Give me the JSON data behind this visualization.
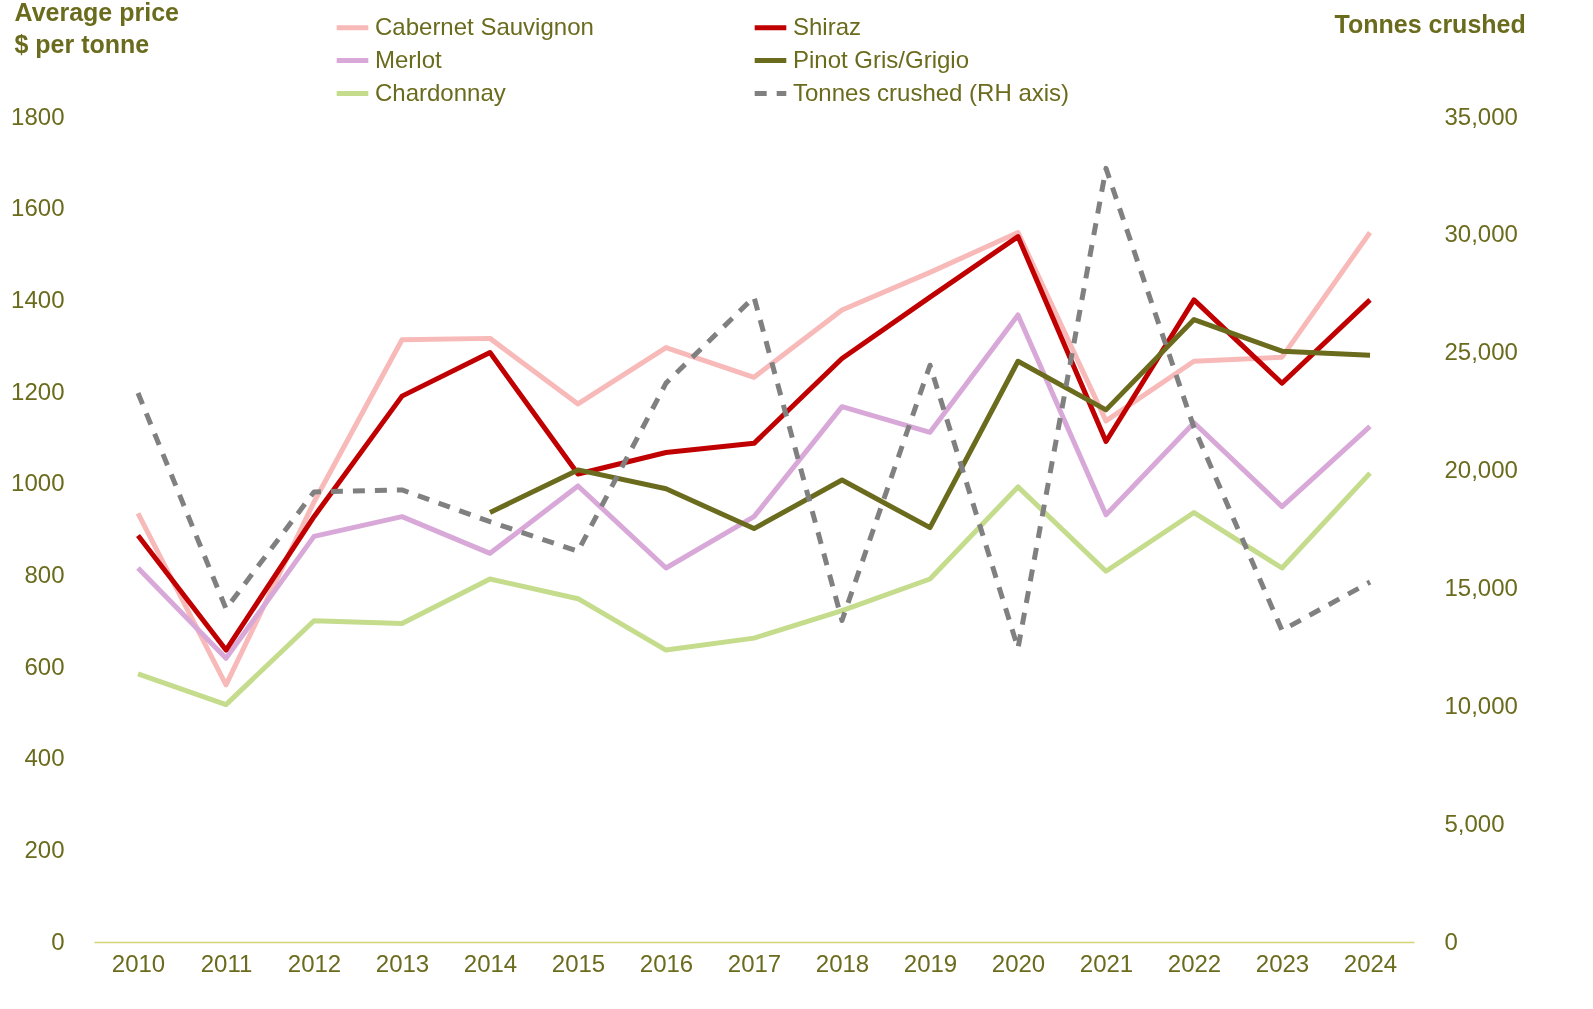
{
  "chart_data": {
    "type": "line",
    "ylabel": "Average price\n$ per tonne",
    "y2label": "Tonnes crushed",
    "categories": [
      "2010",
      "2011",
      "2012",
      "2013",
      "2014",
      "2015",
      "2016",
      "2017",
      "2018",
      "2019",
      "2020",
      "2021",
      "2022",
      "2023",
      "2024"
    ],
    "series": [
      {
        "name": "Cabernet Sauvignon",
        "color": "#f8b9b9",
        "values": [
          935,
          561,
          960,
          1314,
          1317,
          1174,
          1297,
          1232,
          1379,
          1461,
          1548,
          1137,
          1267,
          1276,
          1548
        ]
      },
      {
        "name": "Merlot",
        "color": "#d8a9d8",
        "values": [
          816,
          619,
          885,
          928,
          848,
          995,
          816,
          928,
          1168,
          1112,
          1368,
          932,
          1133,
          950,
          1125
        ]
      },
      {
        "name": "Chardonnay",
        "color": "#c4dc8c",
        "values": [
          585,
          518,
          701,
          695,
          792,
          749,
          637,
          663,
          723,
          792,
          993,
          809,
          937,
          816,
          1023
        ]
      },
      {
        "name": "Shiraz",
        "color": "#c00000",
        "values": [
          887,
          637,
          928,
          1191,
          1286,
          1021,
          1068,
          1088,
          1273,
          1407,
          1539,
          1092,
          1401,
          1219,
          1401
        ]
      },
      {
        "name": "Pinot Gris/Grigio",
        "color": "#6b6b1e",
        "values": [
          null,
          null,
          null,
          null,
          937,
          1030,
          989,
          902,
          1008,
          904,
          1267,
          1161,
          1358,
          1289,
          1280
        ]
      },
      {
        "name": "Tonnes crushed (RH axis)",
        "color": "#808080",
        "axis": "y2",
        "line_style": "dashed",
        "values": [
          23290,
          14140,
          19090,
          19180,
          17830,
          16580,
          23710,
          27360,
          13640,
          24470,
          12460,
          32820,
          21820,
          13220,
          15270
        ]
      }
    ],
    "ylim": [
      0,
      1800
    ],
    "yticks": [
      0,
      200,
      400,
      600,
      800,
      1000,
      1200,
      1400,
      1600,
      1800
    ],
    "y2lim": [
      0,
      35000
    ],
    "y2ticks": [
      0,
      {
        "value": 5000,
        "label": "5,000"
      },
      {
        "value": 10000,
        "label": "10,000"
      },
      {
        "value": 15000,
        "label": "15,000"
      },
      {
        "value": 20000,
        "label": "20,000"
      },
      {
        "value": 25000,
        "label": "25,000"
      },
      {
        "value": 30000,
        "label": "30,000"
      },
      {
        "value": 35000,
        "label": "35,000"
      }
    ],
    "grid": false,
    "legend": "top",
    "line_style": "solid"
  }
}
